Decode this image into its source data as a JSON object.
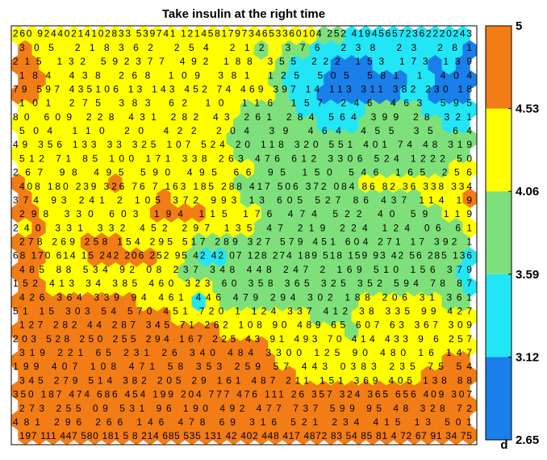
{
  "chart_data": {
    "type": "heatmap",
    "title": "Take insulin at the right time",
    "colorbar": {
      "label": "d",
      "ticks": [
        "5",
        "4.53",
        "4.06",
        "3.59",
        "3.12",
        "2.65"
      ],
      "bands": [
        {
          "from": 4.53,
          "to": 5.0,
          "color": "#f27c16"
        },
        {
          "from": 4.06,
          "to": 4.53,
          "color": "#ffff00"
        },
        {
          "from": 3.59,
          "to": 4.06,
          "color": "#7ee07a"
        },
        {
          "from": 3.12,
          "to": 3.59,
          "color": "#22e6f6"
        },
        {
          "from": 2.65,
          "to": 3.12,
          "color": "#1a7fe8"
        }
      ]
    },
    "grid": {
      "cols": 33,
      "rows": 28
    },
    "cells": [
      "YYYYYYYYYYYYYYYYYYYYYYGGCCCCCCCCC",
      "OYYYYYYYYYYYYYYYYGYGGCCCCCCCCCCCB",
      "OOYYYYYYYYYYYYYYYYYGCCCBBBCCCCBCB",
      "OOYYYYYYYYYYYYYYYYGCCCBBBBBBCCBBB",
      "OOYYYYYYYYYYYYYYYYYGCCBBBBBBCCBBB",
      "YYYYYYYYYYYYYYYYGGGGCCCCCGGGGCCCC",
      "YYYYYYYYYYYYYYYYGGGGGGCCCGGGGGGCC",
      "YYYYYYYYYYYYYYYGGGGGGGGGGGGGGGGGG",
      "YYYYYYYYYYYYYYYYGGGGGGGGGGGGGGGGG",
      "YYYYYYYYYYYYYYYYYGGGGGGGGGGGGGGYY",
      "OYYYYYYOYYYYYYYYGGGGGGGGGYYYYYYYY",
      "OYYYYYYYYYOYYYYYGGGGGGGGGGGGGYYYO",
      "OOYYYYYYYYOOOOYYYYGGGGGGGGGGGGGYY",
      "YOYYYYYYYYYYYYYYYGGGGGGGGGGGGGGGY",
      "OOYYYOOOYYYYYGGGGGGGGGGGGGGGGGGGG",
      "OOYYYOOOOOYYGCCGGGGGGGGGGGGGGGGGC",
      "OOYYYYYYYYYYGGGGGGGGGGGGGGGGGGGGC",
      "OOYYYYYYYYYYYYGGGGGGGGGGGGGGGGGGC",
      "OOOOOOOOOYYYYCYGGGGGGGGGGYYYYYYGG",
      "OOOOOOOOOOOYYYYYYYYYYGGGYYYYYYYYY",
      "OOOOOOOOOOOOOOOYYYYYYYYYGYYYYYYYY",
      "OOOOOOOOOOOOOOOOOOYYYYYYYYYYYYYYY",
      "OOOOOOOOOOOOOOOOOOOYYYYYYYYYYYYOO",
      "OOOOOOOOOOOOOOOOOOOOYYYYYYYYYOOOO",
      "OOOOOOOOOOOOOOOOOOOOOOOOOOOOOOOOO",
      "OOOOOOOOOOOOOOOOOOOOOOOOOOOOOOOOO",
      "OOOOOOOOOOOOOOOOOOOOOOOOOOOOOOOOO",
      "OOOOOOOOOOOOOOOOOOOOOOOOOOOOOOOOO"
    ],
    "cell_labels": [
      "260  92440214102833  539741  121458179734653360104  252  419456572362220243",
      "305  218362  254  212  376  238  23  281",
      "215  132  592377  492  188  355  222  153  173  139",
      "184  438  268  109  381  125  505  581  1  404",
      "79  597  435106  13  143  452  74  469  397  14  113  311  382  230  18",
      "101  275  383  62  10  116  157  246  463  595",
      "80  609  228  431  282  43  261  284  564  399  28  321",
      "504  110  20  422  204  39  464  455  35  64",
      "49  356  133  33  325  107  524  20  118  320  551  401  74  48  319",
      "512  71  85  100  171  338  263  476  612  3306  524  1222  50",
      "267  98  495  590  495  66  95  150  546  165  256",
      "408  180  239  326  76  7  163  185  288  417  506  372  084  86  82  36  338  334",
      "374  93  241  2  105  372  993  13  605  527  86  437  114  19",
      "298  330  603  194  115  176  474  522  40  59  119",
      "240  331  332  452  297  135  47  219  224  124  06  61",
      "278  269  258  154  295  517  289  327  579  451  604  271  17  392  1",
      "68  170  614  15  242  206  252  95  42  42  07  128  274  189  518  159  93  42  56  285  136",
      "485  88  534  92  08  237  348  448  247  2  169  510  156  379",
      "152  413  34  385  460  323  60  358  365  325  352  594  78  87",
      "426  364  339  94  461  446  479  294  302  188  206  31  361",
      "51  15  303  54  570  451  720  1  124  337  412  38  335  99  427",
      "127  282  44  287  345  71  262  108  90  489  65  607  63  367  309",
      "203  528  250  255  294  167  225  43  91  493  70  414  433  9  6  257",
      "319  221  65  231  26  340  484  3300  125  90  480  16  147",
      "199  407  108  471  58  353  259  57  443  0383  235  75  54",
      "345  279  514  382  205  29  161  487  211  151  369  405  138  88",
      "350  187  474  686  454  199  204  777  476  111  26  357  324  365  656  409  307",
      "273  255  09  531  96  190  492  477  737  599  95  48  328  72",
      "481  296  266  146  478  69  316  521  234  415  13  501",
      "197  111  447  580  181  5  8  214  685  535  131  42  402  448  417  4872  83  54  85  81  4  72  67  91  34  75"
    ]
  }
}
